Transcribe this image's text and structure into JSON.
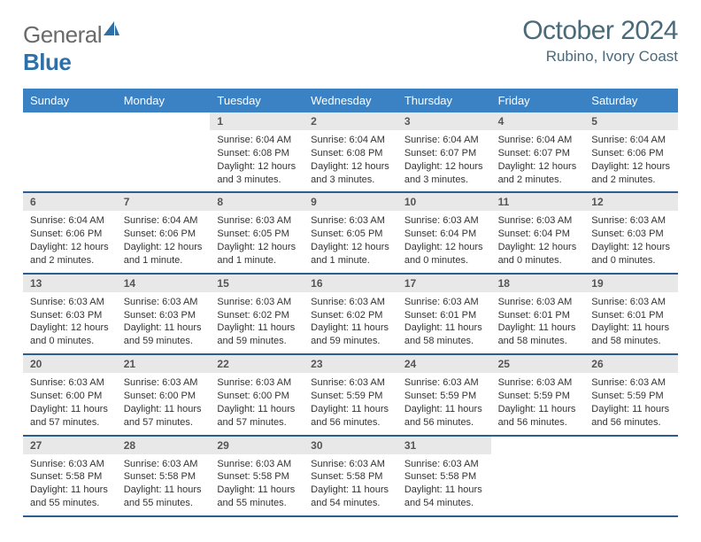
{
  "brand": {
    "general": "General",
    "blue": "Blue"
  },
  "header": {
    "month": "October 2024",
    "location": "Rubino, Ivory Coast"
  },
  "style": {
    "header_blue": "#3b82c4",
    "divider_blue": "#2a5f8f",
    "daynum_bg": "#e8e8e8",
    "text_dark": "#333333",
    "text_header": "#4a6a7a",
    "bg": "#ffffff",
    "font_family": "Arial",
    "month_fontsize": 30,
    "location_fontsize": 17,
    "weekday_fontsize": 13,
    "daynum_fontsize": 12,
    "body_fontsize": 11,
    "columns": 7,
    "cell_min_height": 86
  },
  "weekdays": [
    "Sunday",
    "Monday",
    "Tuesday",
    "Wednesday",
    "Thursday",
    "Friday",
    "Saturday"
  ],
  "weeks": [
    [
      {
        "n": "",
        "t": ""
      },
      {
        "n": "",
        "t": ""
      },
      {
        "n": "1",
        "t": "Sunrise: 6:04 AM\nSunset: 6:08 PM\nDaylight: 12 hours and 3 minutes."
      },
      {
        "n": "2",
        "t": "Sunrise: 6:04 AM\nSunset: 6:08 PM\nDaylight: 12 hours and 3 minutes."
      },
      {
        "n": "3",
        "t": "Sunrise: 6:04 AM\nSunset: 6:07 PM\nDaylight: 12 hours and 3 minutes."
      },
      {
        "n": "4",
        "t": "Sunrise: 6:04 AM\nSunset: 6:07 PM\nDaylight: 12 hours and 2 minutes."
      },
      {
        "n": "5",
        "t": "Sunrise: 6:04 AM\nSunset: 6:06 PM\nDaylight: 12 hours and 2 minutes."
      }
    ],
    [
      {
        "n": "6",
        "t": "Sunrise: 6:04 AM\nSunset: 6:06 PM\nDaylight: 12 hours and 2 minutes."
      },
      {
        "n": "7",
        "t": "Sunrise: 6:04 AM\nSunset: 6:06 PM\nDaylight: 12 hours and 1 minute."
      },
      {
        "n": "8",
        "t": "Sunrise: 6:03 AM\nSunset: 6:05 PM\nDaylight: 12 hours and 1 minute."
      },
      {
        "n": "9",
        "t": "Sunrise: 6:03 AM\nSunset: 6:05 PM\nDaylight: 12 hours and 1 minute."
      },
      {
        "n": "10",
        "t": "Sunrise: 6:03 AM\nSunset: 6:04 PM\nDaylight: 12 hours and 0 minutes."
      },
      {
        "n": "11",
        "t": "Sunrise: 6:03 AM\nSunset: 6:04 PM\nDaylight: 12 hours and 0 minutes."
      },
      {
        "n": "12",
        "t": "Sunrise: 6:03 AM\nSunset: 6:03 PM\nDaylight: 12 hours and 0 minutes."
      }
    ],
    [
      {
        "n": "13",
        "t": "Sunrise: 6:03 AM\nSunset: 6:03 PM\nDaylight: 12 hours and 0 minutes."
      },
      {
        "n": "14",
        "t": "Sunrise: 6:03 AM\nSunset: 6:03 PM\nDaylight: 11 hours and 59 minutes."
      },
      {
        "n": "15",
        "t": "Sunrise: 6:03 AM\nSunset: 6:02 PM\nDaylight: 11 hours and 59 minutes."
      },
      {
        "n": "16",
        "t": "Sunrise: 6:03 AM\nSunset: 6:02 PM\nDaylight: 11 hours and 59 minutes."
      },
      {
        "n": "17",
        "t": "Sunrise: 6:03 AM\nSunset: 6:01 PM\nDaylight: 11 hours and 58 minutes."
      },
      {
        "n": "18",
        "t": "Sunrise: 6:03 AM\nSunset: 6:01 PM\nDaylight: 11 hours and 58 minutes."
      },
      {
        "n": "19",
        "t": "Sunrise: 6:03 AM\nSunset: 6:01 PM\nDaylight: 11 hours and 58 minutes."
      }
    ],
    [
      {
        "n": "20",
        "t": "Sunrise: 6:03 AM\nSunset: 6:00 PM\nDaylight: 11 hours and 57 minutes."
      },
      {
        "n": "21",
        "t": "Sunrise: 6:03 AM\nSunset: 6:00 PM\nDaylight: 11 hours and 57 minutes."
      },
      {
        "n": "22",
        "t": "Sunrise: 6:03 AM\nSunset: 6:00 PM\nDaylight: 11 hours and 57 minutes."
      },
      {
        "n": "23",
        "t": "Sunrise: 6:03 AM\nSunset: 5:59 PM\nDaylight: 11 hours and 56 minutes."
      },
      {
        "n": "24",
        "t": "Sunrise: 6:03 AM\nSunset: 5:59 PM\nDaylight: 11 hours and 56 minutes."
      },
      {
        "n": "25",
        "t": "Sunrise: 6:03 AM\nSunset: 5:59 PM\nDaylight: 11 hours and 56 minutes."
      },
      {
        "n": "26",
        "t": "Sunrise: 6:03 AM\nSunset: 5:59 PM\nDaylight: 11 hours and 56 minutes."
      }
    ],
    [
      {
        "n": "27",
        "t": "Sunrise: 6:03 AM\nSunset: 5:58 PM\nDaylight: 11 hours and 55 minutes."
      },
      {
        "n": "28",
        "t": "Sunrise: 6:03 AM\nSunset: 5:58 PM\nDaylight: 11 hours and 55 minutes."
      },
      {
        "n": "29",
        "t": "Sunrise: 6:03 AM\nSunset: 5:58 PM\nDaylight: 11 hours and 55 minutes."
      },
      {
        "n": "30",
        "t": "Sunrise: 6:03 AM\nSunset: 5:58 PM\nDaylight: 11 hours and 54 minutes."
      },
      {
        "n": "31",
        "t": "Sunrise: 6:03 AM\nSunset: 5:58 PM\nDaylight: 11 hours and 54 minutes."
      },
      {
        "n": "",
        "t": ""
      },
      {
        "n": "",
        "t": ""
      }
    ]
  ]
}
